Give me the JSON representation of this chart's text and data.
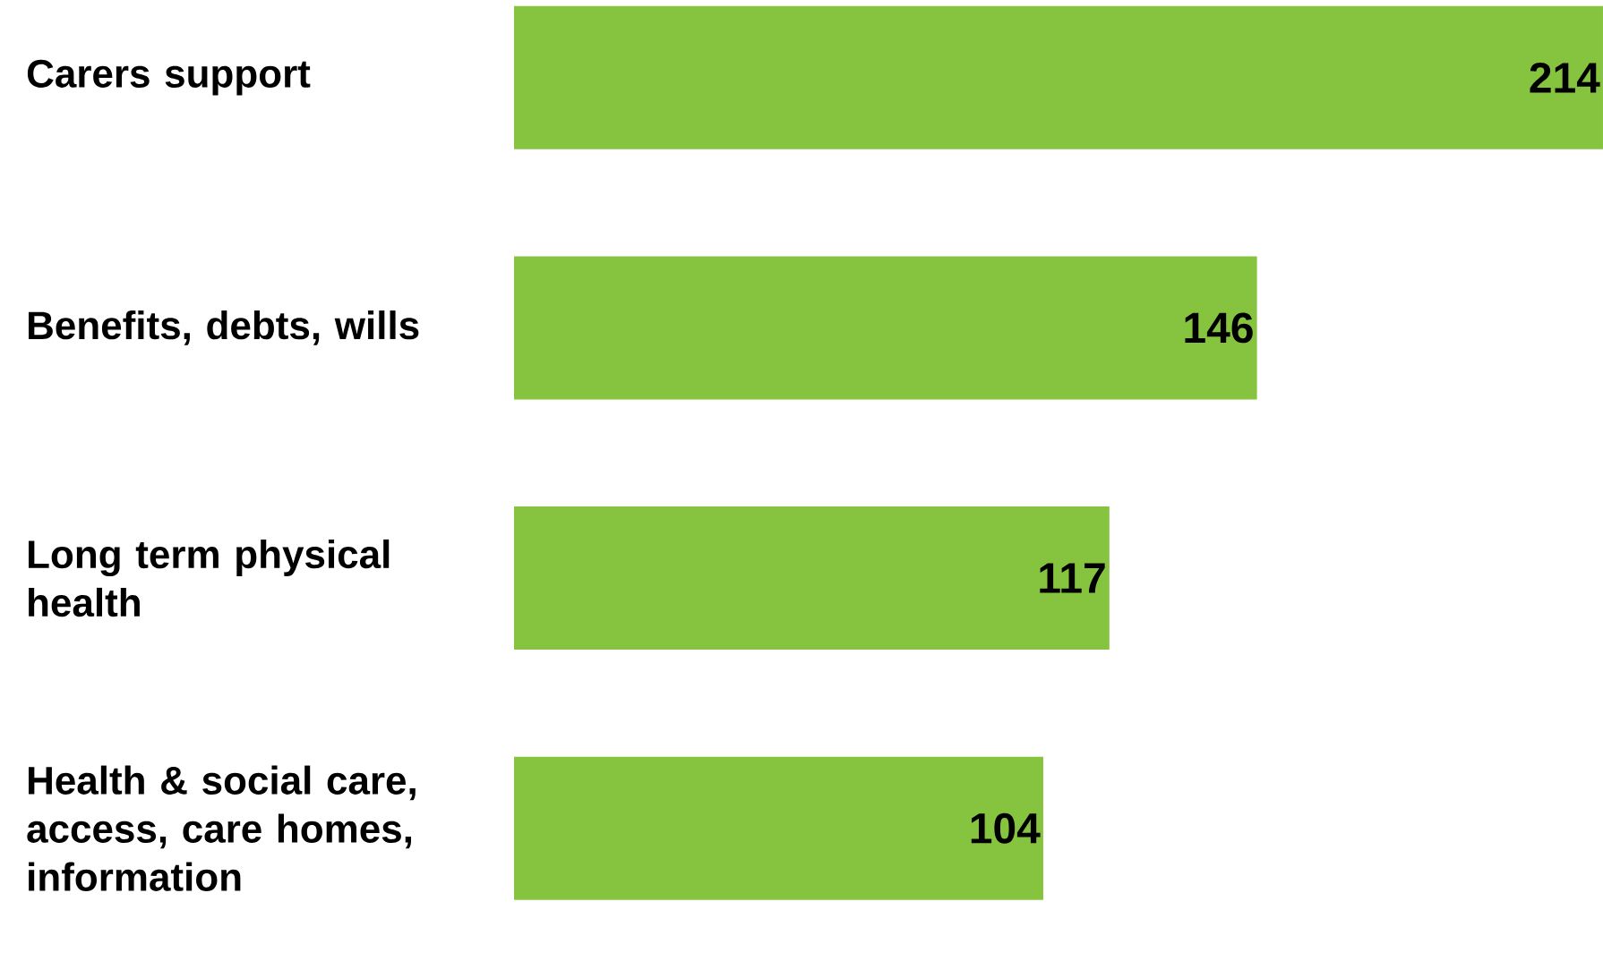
{
  "chart_data": {
    "type": "bar",
    "orientation": "horizontal",
    "categories": [
      "Carers support",
      "Benefits, debts, wills",
      "Long term physical health",
      "Health & social care, access, care homes, information"
    ],
    "values": [
      214,
      146,
      117,
      104
    ],
    "color": "#86c440",
    "data_labels": true
  }
}
